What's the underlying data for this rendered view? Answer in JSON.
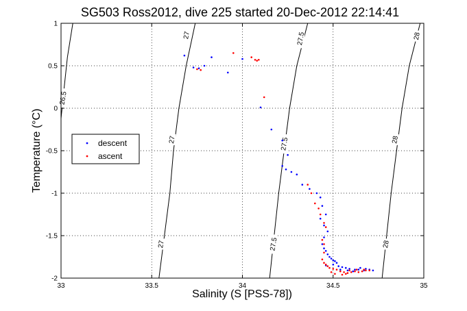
{
  "chart_data": {
    "type": "scatter",
    "title": "SG503 Ross2012, dive 225 started 20-Dec-2012 22:14:41",
    "xlabel": "Salinity (S [PSS-78])",
    "ylabel": "Temperature (°C)",
    "xlim": [
      33,
      35
    ],
    "ylim": [
      -2,
      1
    ],
    "xticks": [
      "33",
      "33.5",
      "34",
      "34.5",
      "35"
    ],
    "yticks": [
      "-2",
      "-1.5",
      "-1",
      "-0.5",
      "0",
      "0.5",
      "1"
    ],
    "grid": true,
    "legend": {
      "position": "center-left",
      "entries": [
        "descent",
        "ascent"
      ]
    },
    "colors": {
      "descent": "#0000ff",
      "ascent": "#ff0000",
      "contour": "#000000"
    },
    "contours": [
      {
        "label": "26.5",
        "points": [
          [
            33.0,
            -0.12
          ],
          [
            33.015,
            0.2
          ],
          [
            33.035,
            0.6
          ],
          [
            33.065,
            1.0
          ]
        ]
      },
      {
        "label": "27",
        "points": [
          [
            33.54,
            -2.0
          ],
          [
            33.6,
            -1.0
          ],
          [
            33.62,
            -0.5
          ],
          [
            33.65,
            0.0
          ],
          [
            33.69,
            0.5
          ],
          [
            33.74,
            1.0
          ]
        ]
      },
      {
        "label": "27.5",
        "points": [
          [
            34.15,
            -2.0
          ],
          [
            34.2,
            -1.0
          ],
          [
            34.23,
            -0.5
          ],
          [
            34.26,
            0.0
          ],
          [
            34.3,
            0.5
          ],
          [
            34.36,
            1.0
          ]
        ]
      },
      {
        "label": "28",
        "points": [
          [
            34.77,
            -2.0
          ],
          [
            34.82,
            -1.0
          ],
          [
            34.85,
            -0.5
          ],
          [
            34.88,
            0.0
          ],
          [
            34.92,
            0.5
          ],
          [
            34.98,
            1.0
          ]
        ]
      }
    ],
    "contour_labels": [
      {
        "text": "26.5",
        "x": 33.01,
        "y": 0.12
      },
      {
        "text": "27",
        "x": 33.69,
        "y": 0.86
      },
      {
        "text": "27",
        "x": 33.61,
        "y": -0.37
      },
      {
        "text": "27",
        "x": 33.55,
        "y": -1.6
      },
      {
        "text": "27.5",
        "x": 34.32,
        "y": 0.82
      },
      {
        "text": "27.5",
        "x": 34.23,
        "y": -0.42
      },
      {
        "text": "27.5",
        "x": 34.17,
        "y": -1.6
      },
      {
        "text": "28",
        "x": 34.96,
        "y": 0.85
      },
      {
        "text": "28",
        "x": 34.84,
        "y": -0.37
      },
      {
        "text": "28",
        "x": 34.79,
        "y": -1.6
      }
    ],
    "series": [
      {
        "name": "descent",
        "points": [
          [
            33.68,
            0.62
          ],
          [
            33.73,
            0.48
          ],
          [
            33.76,
            0.47
          ],
          [
            33.79,
            0.5
          ],
          [
            33.83,
            0.6
          ],
          [
            33.92,
            0.42
          ],
          [
            34.0,
            0.58
          ],
          [
            34.1,
            0.01
          ],
          [
            34.16,
            -0.25
          ],
          [
            34.22,
            -0.38
          ],
          [
            34.25,
            -0.55
          ],
          [
            34.22,
            -0.68
          ],
          [
            34.24,
            -0.72
          ],
          [
            34.27,
            -0.75
          ],
          [
            34.3,
            -0.78
          ],
          [
            34.33,
            -0.9
          ],
          [
            34.37,
            -0.95
          ],
          [
            34.41,
            -1.0
          ],
          [
            34.43,
            -1.05
          ],
          [
            34.44,
            -1.15
          ],
          [
            34.46,
            -1.25
          ],
          [
            34.43,
            -1.3
          ],
          [
            34.45,
            -1.38
          ],
          [
            34.47,
            -1.45
          ],
          [
            34.45,
            -1.52
          ],
          [
            34.44,
            -1.6
          ],
          [
            34.45,
            -1.65
          ],
          [
            34.46,
            -1.68
          ],
          [
            34.47,
            -1.72
          ],
          [
            34.48,
            -1.75
          ],
          [
            34.49,
            -1.77
          ],
          [
            34.5,
            -1.79
          ],
          [
            34.51,
            -1.8
          ],
          [
            34.52,
            -1.82
          ],
          [
            34.5,
            -1.84
          ],
          [
            34.46,
            -1.85
          ],
          [
            34.53,
            -1.86
          ],
          [
            34.55,
            -1.87
          ],
          [
            34.57,
            -1.88
          ],
          [
            34.59,
            -1.89
          ],
          [
            34.62,
            -1.9
          ],
          [
            34.65,
            -1.88
          ],
          [
            34.68,
            -1.89
          ],
          [
            34.7,
            -1.9
          ],
          [
            34.72,
            -1.91
          ],
          [
            34.54,
            -1.9
          ],
          [
            34.58,
            -1.91
          ],
          [
            34.61,
            -1.92
          ],
          [
            34.64,
            -1.9
          ],
          [
            34.67,
            -1.91
          ]
        ]
      },
      {
        "name": "ascent",
        "points": [
          [
            33.75,
            0.46
          ],
          [
            33.77,
            0.45
          ],
          [
            33.95,
            0.65
          ],
          [
            34.05,
            0.6
          ],
          [
            34.07,
            0.57
          ],
          [
            34.08,
            0.56
          ],
          [
            34.09,
            0.57
          ],
          [
            34.12,
            0.13
          ],
          [
            34.36,
            -0.9
          ],
          [
            34.38,
            -1.0
          ],
          [
            34.4,
            -1.12
          ],
          [
            34.42,
            -1.18
          ],
          [
            34.43,
            -1.25
          ],
          [
            34.45,
            -1.35
          ],
          [
            34.46,
            -1.4
          ],
          [
            34.44,
            -1.55
          ],
          [
            34.45,
            -1.6
          ],
          [
            34.45,
            -1.7
          ],
          [
            34.44,
            -1.78
          ],
          [
            34.45,
            -1.82
          ],
          [
            34.46,
            -1.84
          ],
          [
            34.47,
            -1.86
          ],
          [
            34.48,
            -1.88
          ],
          [
            34.5,
            -1.89
          ],
          [
            34.52,
            -1.9
          ],
          [
            34.54,
            -1.92
          ],
          [
            34.56,
            -1.93
          ],
          [
            34.58,
            -1.94
          ],
          [
            34.6,
            -1.93
          ],
          [
            34.62,
            -1.92
          ],
          [
            34.64,
            -1.93
          ],
          [
            34.66,
            -1.92
          ],
          [
            34.68,
            -1.91
          ],
          [
            34.49,
            -1.93
          ],
          [
            34.51,
            -1.95
          ],
          [
            34.55,
            -1.96
          ],
          [
            34.57,
            -1.95
          ],
          [
            34.59,
            -1.91
          ],
          [
            34.63,
            -1.9
          ],
          [
            34.67,
            -1.9
          ],
          [
            34.7,
            -1.91
          ]
        ]
      }
    ]
  }
}
